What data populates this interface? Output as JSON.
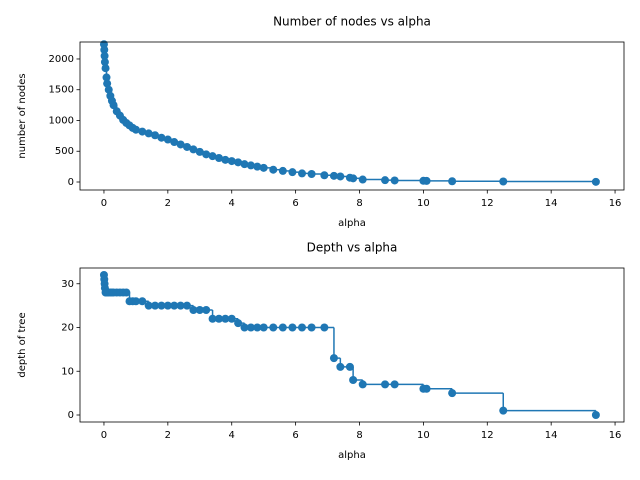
{
  "chart_data": [
    {
      "type": "line",
      "title": "Number of nodes vs alpha",
      "x_label": "alpha",
      "y_label": "number of nodes",
      "drawstyle": "steps-post",
      "marker": "o",
      "x": [
        0,
        0.01,
        0.02,
        0.03,
        0.05,
        0.08,
        0.1,
        0.15,
        0.2,
        0.25,
        0.3,
        0.4,
        0.5,
        0.6,
        0.7,
        0.8,
        0.9,
        1.0,
        1.2,
        1.4,
        1.6,
        1.8,
        2.0,
        2.2,
        2.4,
        2.6,
        2.8,
        3.0,
        3.2,
        3.4,
        3.6,
        3.8,
        4.0,
        4.2,
        4.4,
        4.6,
        4.8,
        5.0,
        5.3,
        5.6,
        5.9,
        6.2,
        6.5,
        6.9,
        7.2,
        7.4,
        7.7,
        7.8,
        8.1,
        8.8,
        9.1,
        10.0,
        10.1,
        10.9,
        12.5,
        15.4
      ],
      "series": [
        {
          "color": "#1f77b4",
          "values": [
            2240,
            2150,
            2050,
            1950,
            1850,
            1700,
            1600,
            1500,
            1400,
            1320,
            1250,
            1150,
            1080,
            1010,
            960,
            920,
            880,
            850,
            820,
            790,
            760,
            720,
            690,
            650,
            610,
            570,
            530,
            490,
            450,
            420,
            390,
            360,
            340,
            320,
            290,
            270,
            250,
            230,
            200,
            180,
            160,
            140,
            130,
            110,
            100,
            90,
            70,
            60,
            40,
            30,
            25,
            20,
            18,
            12,
            8,
            3
          ]
        }
      ],
      "xlim": [
        -0.75,
        16.28
      ],
      "ylim": [
        -130,
        2276
      ],
      "xticks": [
        0,
        2,
        4,
        6,
        8,
        10,
        12,
        14,
        16
      ],
      "yticks": [
        0,
        500,
        1000,
        1500,
        2000
      ]
    },
    {
      "type": "line",
      "title": "Depth vs alpha",
      "x_label": "alpha",
      "y_label": "depth of tree",
      "drawstyle": "steps-post",
      "marker": "o",
      "x": [
        0,
        0.01,
        0.02,
        0.03,
        0.05,
        0.08,
        0.1,
        0.15,
        0.2,
        0.25,
        0.3,
        0.4,
        0.5,
        0.6,
        0.7,
        0.8,
        0.9,
        1.0,
        1.2,
        1.4,
        1.6,
        1.8,
        2.0,
        2.2,
        2.4,
        2.6,
        2.8,
        3.0,
        3.2,
        3.4,
        3.6,
        3.8,
        4.0,
        4.2,
        4.4,
        4.6,
        4.8,
        5.0,
        5.3,
        5.6,
        5.9,
        6.2,
        6.5,
        6.9,
        7.2,
        7.4,
        7.7,
        7.8,
        8.1,
        8.8,
        9.1,
        10.0,
        10.1,
        10.9,
        12.5,
        15.4
      ],
      "series": [
        {
          "color": "#1f77b4",
          "values": [
            32,
            31,
            30,
            29,
            28,
            28,
            28,
            28,
            28,
            28,
            28,
            28,
            28,
            28,
            28,
            26,
            26,
            26,
            26,
            25,
            25,
            25,
            25,
            25,
            25,
            25,
            24,
            24,
            24,
            22,
            22,
            22,
            22,
            21,
            20,
            20,
            20,
            20,
            20,
            20,
            20,
            20,
            20,
            20,
            13,
            11,
            11,
            8,
            7,
            7,
            7,
            6,
            6,
            5,
            1,
            0
          ]
        }
      ],
      "xlim": [
        -0.75,
        16.28
      ],
      "ylim": [
        -1.6,
        33.6
      ],
      "xticks": [
        0,
        2,
        4,
        6,
        8,
        10,
        12,
        14,
        16
      ],
      "yticks": [
        0,
        10,
        20,
        30
      ]
    }
  ]
}
